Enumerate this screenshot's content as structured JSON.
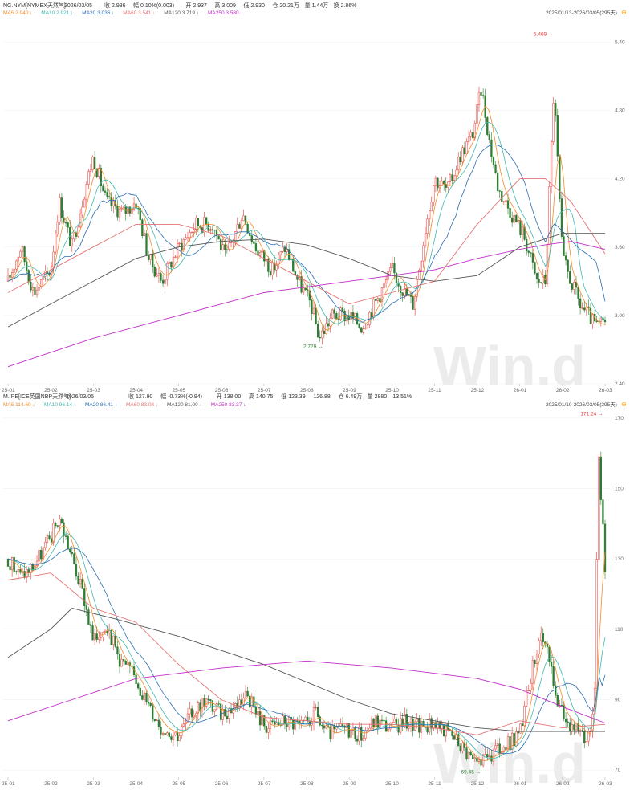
{
  "top": {
    "header": {
      "symbol": "NG.NYM[NYMEX天然气]",
      "date": "2026/03/05",
      "fields": [
        {
          "label": "收",
          "value": "2.936",
          "color": "#e53935"
        },
        {
          "label": "幅",
          "value": "0.10%(0.003)",
          "color": "#e53935"
        },
        {
          "label": "开",
          "value": "2.937",
          "color": "#e53935"
        },
        {
          "label": "高",
          "value": "3.009",
          "color": "#e53935"
        },
        {
          "label": "低",
          "value": "2.930",
          "color": "#2e7d32"
        },
        {
          "label": "仓",
          "value": "20.21万",
          "color": "#333333"
        },
        {
          "label": "量",
          "value": "1.44万",
          "color": "#333333"
        },
        {
          "label": "换",
          "value": "2.86%",
          "color": "#333333"
        }
      ],
      "range_label": "2025/01/13-2026/03/05(295天)"
    },
    "ma_legend": [
      {
        "label": "MA5 2.940",
        "color": "#f28c28"
      },
      {
        "label": "MA10 2.921",
        "color": "#3fb8af"
      },
      {
        "label": "MA20 3.036",
        "color": "#2b6cb0"
      },
      {
        "label": "MA60 3.541",
        "color": "#e57373"
      },
      {
        "label": "MA120 3.719",
        "color": "#555555"
      },
      {
        "label": "MA250 3.580",
        "color": "#c02dc8"
      }
    ],
    "yticks": [
      "5.40",
      "4.80",
      "4.20",
      "3.60",
      "3.00",
      "2.40"
    ],
    "ytick_values": [
      5.4,
      4.8,
      4.2,
      3.6,
      3.0,
      2.4
    ],
    "xticks": [
      "25-01",
      "25-02",
      "25-03",
      "25-04",
      "25-05",
      "25-06",
      "25-07",
      "25-08",
      "25-09",
      "25-10",
      "25-11",
      "25-12",
      "26-01",
      "26-02",
      "26-03"
    ],
    "annotations": [
      {
        "text": "5.469",
        "value": 5.469,
        "month": 12.7,
        "color": "#e53935"
      },
      {
        "text": "2.729",
        "value": 2.729,
        "month": 7.3,
        "color": "#2e7d32"
      }
    ]
  },
  "bottom": {
    "header": {
      "symbol": "M.IPE[ICE英国NBP天然气]",
      "date": "2026/03/05",
      "fields": [
        {
          "label": "收",
          "value": "127.90",
          "color": "#2e7d32"
        },
        {
          "label": "幅",
          "value": "-0.73%(-0.94)",
          "color": "#2e7d32"
        },
        {
          "label": "开",
          "value": "138.00",
          "color": "#e53935"
        },
        {
          "label": "高",
          "value": "140.75",
          "color": "#e53935"
        },
        {
          "label": "低",
          "value": "123.39",
          "color": "#2e7d32"
        },
        {
          "label": "",
          "value": "126.88",
          "color": "#2e7d32"
        },
        {
          "label": "仓",
          "value": "6.49万",
          "color": "#333333"
        },
        {
          "label": "量",
          "value": "2880",
          "color": "#333333"
        },
        {
          "label": "",
          "value": "13.51%",
          "color": "#333333"
        }
      ],
      "range_label": "2025/01/10-2026/03/05(295天)"
    },
    "ma_legend": [
      {
        "label": "MA5 114.60",
        "color": "#f28c28"
      },
      {
        "label": "MA10 96.14",
        "color": "#3fb8af"
      },
      {
        "label": "MA20 86.41",
        "color": "#2b6cb0"
      },
      {
        "label": "MA60 83.08",
        "color": "#e57373"
      },
      {
        "label": "MA120 81.00",
        "color": "#555555"
      },
      {
        "label": "MA250 83.37",
        "color": "#c02dc8"
      }
    ],
    "yticks": [
      "170",
      "150",
      "130",
      "110",
      "90",
      "70"
    ],
    "ytick_values": [
      170,
      150,
      130,
      110,
      90,
      70
    ],
    "xticks": [
      "25-01",
      "25-02",
      "25-03",
      "25-04",
      "25-05",
      "25-06",
      "25-07",
      "25-08",
      "25-09",
      "25-10",
      "25-11",
      "25-12",
      "26-01",
      "26-02",
      "26-03"
    ],
    "annotations": [
      {
        "text": "171.24",
        "value": 171.24,
        "month": 13.8,
        "color": "#e53935"
      },
      {
        "text": "69.45",
        "value": 69.45,
        "month": 11.0,
        "color": "#2e7d32"
      }
    ]
  },
  "chart_data": [
    {
      "type": "candlestick",
      "title": "NG.NYM[NYMEX天然气]",
      "x_unit": "month",
      "xlabels": [
        "25-01",
        "25-02",
        "25-03",
        "25-04",
        "25-05",
        "25-06",
        "25-07",
        "25-08",
        "25-09",
        "25-10",
        "25-11",
        "25-12",
        "26-01",
        "26-02",
        "26-03"
      ],
      "ylim": [
        2.4,
        5.6
      ],
      "close_path": [
        [
          0,
          3.3
        ],
        [
          0.3,
          3.6
        ],
        [
          0.6,
          3.2
        ],
        [
          1.0,
          3.4
        ],
        [
          1.2,
          4.0
        ],
        [
          1.5,
          3.6
        ],
        [
          1.8,
          4.1
        ],
        [
          2.0,
          4.4
        ],
        [
          2.3,
          4.0
        ],
        [
          2.7,
          3.9
        ],
        [
          3.0,
          4.0
        ],
        [
          3.3,
          3.5
        ],
        [
          3.6,
          3.3
        ],
        [
          4.0,
          3.6
        ],
        [
          4.4,
          3.8
        ],
        [
          4.8,
          3.8
        ],
        [
          5.1,
          3.5
        ],
        [
          5.5,
          3.9
        ],
        [
          5.8,
          3.6
        ],
        [
          6.2,
          3.4
        ],
        [
          6.5,
          3.6
        ],
        [
          6.8,
          3.3
        ],
        [
          7.1,
          3.1
        ],
        [
          7.3,
          2.8
        ],
        [
          7.6,
          3.0
        ],
        [
          8.0,
          3.0
        ],
        [
          8.3,
          2.9
        ],
        [
          8.6,
          3.1
        ],
        [
          9.0,
          3.4
        ],
        [
          9.3,
          3.2
        ],
        [
          9.5,
          3.1
        ],
        [
          9.8,
          3.8
        ],
        [
          10.0,
          4.2
        ],
        [
          10.3,
          4.1
        ],
        [
          10.6,
          4.4
        ],
        [
          10.9,
          4.6
        ],
        [
          11.1,
          5.0
        ],
        [
          11.3,
          4.5
        ],
        [
          11.5,
          4.1
        ],
        [
          11.8,
          3.9
        ],
        [
          12.1,
          3.7
        ],
        [
          12.4,
          3.3
        ],
        [
          12.6,
          3.3
        ],
        [
          12.8,
          5.0
        ],
        [
          13.0,
          3.5
        ],
        [
          13.2,
          3.3
        ],
        [
          13.4,
          3.1
        ],
        [
          13.6,
          3.0
        ],
        [
          13.8,
          2.9
        ],
        [
          14.0,
          2.94
        ]
      ],
      "moving_averages": [
        {
          "name": "MA60",
          "color": "#e57373",
          "path": [
            [
              0,
              3.2
            ],
            [
              2,
              3.6
            ],
            [
              3,
              3.8
            ],
            [
              4,
              3.8
            ],
            [
              5,
              3.7
            ],
            [
              6,
              3.5
            ],
            [
              7,
              3.3
            ],
            [
              8,
              3.1
            ],
            [
              9,
              3.2
            ],
            [
              10,
              3.3
            ],
            [
              11,
              3.8
            ],
            [
              12,
              4.2
            ],
            [
              12.6,
              4.2
            ],
            [
              13.2,
              4.0
            ],
            [
              14,
              3.54
            ]
          ]
        },
        {
          "name": "MA120",
          "color": "#555555",
          "path": [
            [
              0,
              2.9
            ],
            [
              1.5,
              3.2
            ],
            [
              3,
              3.5
            ],
            [
              4,
              3.6
            ],
            [
              5,
              3.65
            ],
            [
              6,
              3.67
            ],
            [
              7,
              3.62
            ],
            [
              8,
              3.5
            ],
            [
              9,
              3.35
            ],
            [
              10,
              3.3
            ],
            [
              11,
              3.35
            ],
            [
              12,
              3.6
            ],
            [
              13,
              3.72
            ],
            [
              14,
              3.72
            ]
          ]
        },
        {
          "name": "MA250",
          "color": "#c02dc8",
          "path": [
            [
              0,
              2.55
            ],
            [
              2,
              2.8
            ],
            [
              4,
              3.0
            ],
            [
              6,
              3.2
            ],
            [
              8,
              3.3
            ],
            [
              9,
              3.35
            ],
            [
              10,
              3.4
            ],
            [
              11,
              3.5
            ],
            [
              12,
              3.58
            ],
            [
              12.6,
              3.62
            ],
            [
              13.2,
              3.65
            ],
            [
              14,
              3.58
            ]
          ]
        }
      ]
    },
    {
      "type": "candlestick",
      "title": "M.IPE[ICE英国NBP天然气]",
      "x_unit": "month",
      "xlabels": [
        "25-01",
        "25-02",
        "25-03",
        "25-04",
        "25-05",
        "25-06",
        "25-07",
        "25-08",
        "25-09",
        "25-10",
        "25-11",
        "25-12",
        "26-01",
        "26-02",
        "26-03"
      ],
      "ylim": [
        68,
        172
      ],
      "close_path": [
        [
          0,
          130
        ],
        [
          0.3,
          125
        ],
        [
          0.6,
          128
        ],
        [
          1.0,
          136
        ],
        [
          1.2,
          142
        ],
        [
          1.4,
          134
        ],
        [
          1.8,
          118
        ],
        [
          2.0,
          106
        ],
        [
          2.3,
          112
        ],
        [
          2.6,
          102
        ],
        [
          3.0,
          96
        ],
        [
          3.3,
          88
        ],
        [
          3.6,
          82
        ],
        [
          4.0,
          80
        ],
        [
          4.3,
          86
        ],
        [
          4.6,
          90
        ],
        [
          5.0,
          86
        ],
        [
          5.3,
          88
        ],
        [
          5.6,
          92
        ],
        [
          5.8,
          86
        ],
        [
          6.1,
          82
        ],
        [
          6.5,
          84
        ],
        [
          6.9,
          82
        ],
        [
          7.2,
          86
        ],
        [
          7.5,
          80
        ],
        [
          7.9,
          82
        ],
        [
          8.3,
          80
        ],
        [
          8.6,
          84
        ],
        [
          9.0,
          82
        ],
        [
          9.3,
          84
        ],
        [
          9.7,
          82
        ],
        [
          10.0,
          84
        ],
        [
          10.4,
          80
        ],
        [
          10.7,
          76
        ],
        [
          11.0,
          72
        ],
        [
          11.3,
          74
        ],
        [
          11.6,
          76
        ],
        [
          12.0,
          80
        ],
        [
          12.2,
          94
        ],
        [
          12.5,
          110
        ],
        [
          12.7,
          100
        ],
        [
          12.9,
          88
        ],
        [
          13.1,
          84
        ],
        [
          13.4,
          82
        ],
        [
          13.6,
          78
        ],
        [
          13.75,
          90
        ],
        [
          13.85,
          160
        ],
        [
          14.0,
          127.9
        ]
      ],
      "moving_averages": [
        {
          "name": "MA60",
          "color": "#e57373",
          "path": [
            [
              0,
              124
            ],
            [
              1,
              126
            ],
            [
              2,
              116
            ],
            [
              3,
              112
            ],
            [
              4,
              100
            ],
            [
              5,
              90
            ],
            [
              6,
              85
            ],
            [
              7,
              84
            ],
            [
              8,
              83
            ],
            [
              9,
              83
            ],
            [
              10,
              82
            ],
            [
              11,
              80
            ],
            [
              12,
              84
            ],
            [
              13,
              82
            ],
            [
              14,
              83
            ]
          ]
        },
        {
          "name": "MA120",
          "color": "#555555",
          "path": [
            [
              0,
              102
            ],
            [
              1,
              110
            ],
            [
              1.5,
              116
            ],
            [
              2.5,
              113
            ],
            [
              4,
              108
            ],
            [
              5,
              104
            ],
            [
              6,
              100
            ],
            [
              7,
              95
            ],
            [
              8,
              90
            ],
            [
              9,
              86
            ],
            [
              10,
              84
            ],
            [
              11,
              82
            ],
            [
              12,
              81
            ],
            [
              13,
              81
            ],
            [
              14,
              81
            ]
          ]
        },
        {
          "name": "MA250",
          "color": "#c02dc8",
          "path": [
            [
              0,
              84
            ],
            [
              1.5,
              90
            ],
            [
              3,
              96
            ],
            [
              5,
              99
            ],
            [
              7,
              101
            ],
            [
              9,
              99
            ],
            [
              11,
              96
            ],
            [
              12,
              93
            ],
            [
              13,
              88
            ],
            [
              14,
              83.4
            ]
          ]
        }
      ]
    }
  ]
}
